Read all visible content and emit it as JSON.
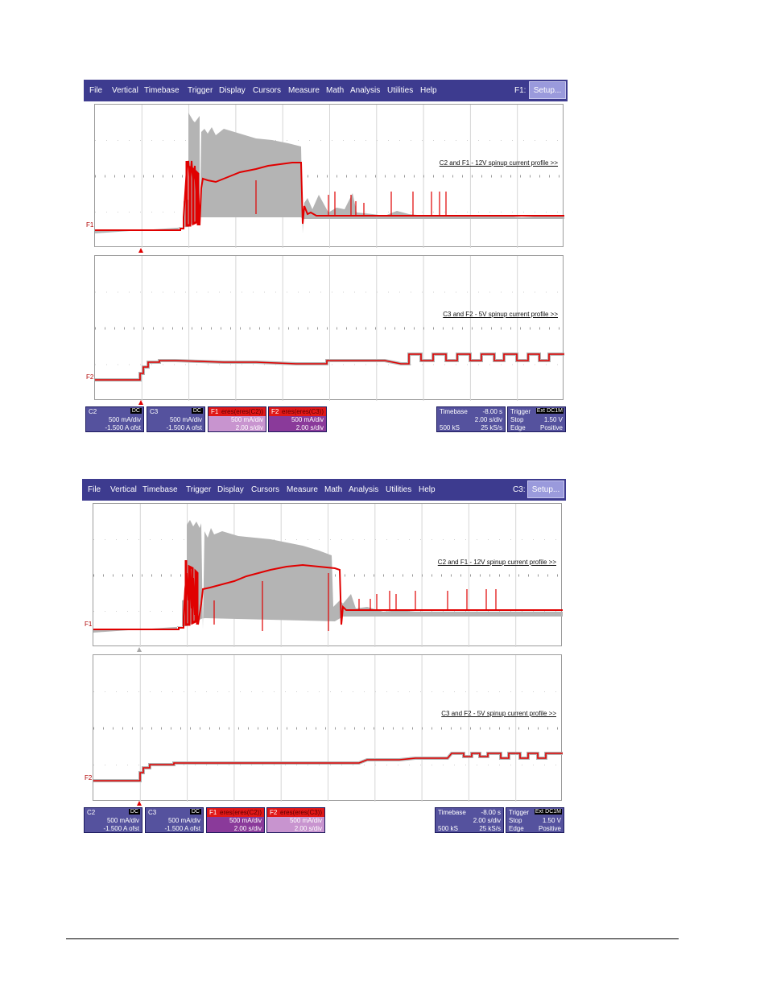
{
  "screens": [
    {
      "menu": [
        "File",
        "Vertical",
        "Timebase",
        "Trigger",
        "Display",
        "Cursors",
        "Measure",
        "Math",
        "Analysis",
        "Utilities",
        "Help"
      ],
      "channel_label": "F1:",
      "setup_label": "Setup...",
      "panel1_annotation": "C2 and F1 - 12V spinup current profile >>",
      "panel2_annotation": "C3 and F2 - 5V spinup current profile >>",
      "trace1_marker": "F1",
      "trace2_marker": "F2",
      "channels": [
        {
          "name": "C2",
          "badge": "DC",
          "line1": "500 mA/div",
          "line2": "-1.500 A ofst"
        },
        {
          "name": "C3",
          "badge": "DC",
          "line1": "500 mA/div",
          "line2": "-1.500 A ofst"
        },
        {
          "name": "F1",
          "formula": "eres(eres(C2))",
          "line1": "500 mA/div",
          "line2": "2.00 s/div"
        },
        {
          "name": "F2",
          "formula": "eres(eres(C3))",
          "line1": "500 mA/div",
          "line2": "2.00 s/div"
        }
      ],
      "timebase": {
        "label": "Timebase",
        "delay": "-8.00 s",
        "div": "2.00 s/div",
        "samples": "500 kS",
        "rate": "25 kS/s"
      },
      "trigger": {
        "label": "Trigger",
        "badge1": "Ext",
        "badge2": "DC1M",
        "mode": "Stop",
        "level": "1.50 V",
        "type": "Edge",
        "slope": "Positive"
      }
    },
    {
      "menu": [
        "File",
        "Vertical",
        "Timebase",
        "Trigger",
        "Display",
        "Cursors",
        "Measure",
        "Math",
        "Analysis",
        "Utilities",
        "Help"
      ],
      "channel_label": "C3:",
      "setup_label": "Setup...",
      "panel1_annotation": "C2 and F1 - 12V spinup current profile >>",
      "panel2_annotation": "C3 and F2 - 5V spinup current profile >>",
      "trace1_marker": "F1",
      "trace2_marker": "F2",
      "channels": [
        {
          "name": "C2",
          "badge": "DC",
          "line1": "500 mA/div",
          "line2": "-1.500 A ofst"
        },
        {
          "name": "C3",
          "badge": "DC",
          "line1": "500 mA/div",
          "line2": "-1.500 A ofst"
        },
        {
          "name": "F1",
          "formula": "eres(eres(C2))",
          "line1": "500 mA/div",
          "line2": "2.00 s/div"
        },
        {
          "name": "F2",
          "formula": "eres(eres(C3))",
          "line1": "500 mA/div",
          "line2": "2.00 s/div"
        }
      ],
      "timebase": {
        "label": "Timebase",
        "delay": "-8.00 s",
        "div": "2.00 s/div",
        "samples": "500 kS",
        "rate": "25 kS/s"
      },
      "trigger": {
        "label": "Trigger",
        "badge1": "Ext",
        "badge2": "DC1M",
        "mode": "Stop",
        "level": "1.50 V",
        "type": "Edge",
        "slope": "Positive"
      }
    }
  ],
  "colors": {
    "menubar": "#3d3b8f",
    "trace_red": "#e00000",
    "trace_gray": "#b4b4b4",
    "channel_box": "#55529e",
    "math_red": "#e01818",
    "math_pink": "#c894cf",
    "math_purple": "#8a3a9a"
  }
}
